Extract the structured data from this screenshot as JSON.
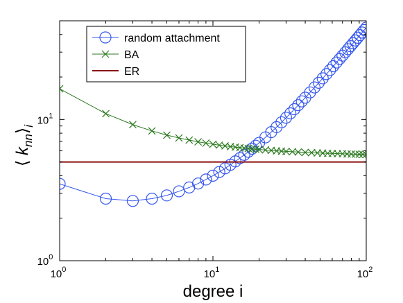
{
  "chart_data": {
    "type": "scatter",
    "title": "",
    "xlabel": "degree  i",
    "ylabel": "⟨ k_nn ⟩_i",
    "xscale": "log",
    "yscale": "log",
    "xlim": [
      1,
      100
    ],
    "ylim": [
      1,
      50
    ],
    "x_ticks": [
      {
        "value": 1,
        "base": "10",
        "exp": "0"
      },
      {
        "value": 10,
        "base": "10",
        "exp": "1"
      },
      {
        "value": 100,
        "base": "10",
        "exp": "2"
      }
    ],
    "y_ticks": [
      {
        "value": 1,
        "base": "10",
        "exp": "0"
      },
      {
        "value": 10,
        "base": "10",
        "exp": "1"
      }
    ],
    "grid": false,
    "legend_position": "top-left",
    "series": [
      {
        "name": "random attachment",
        "color": "#3355ee",
        "marker": "circle",
        "line": true,
        "points": [
          [
            1,
            3.5
          ],
          [
            2,
            2.75
          ],
          [
            3,
            2.65
          ],
          [
            4,
            2.75
          ],
          [
            5,
            2.9
          ],
          [
            6,
            3.1
          ],
          [
            7,
            3.3
          ],
          [
            8,
            3.52
          ],
          [
            9,
            3.76
          ],
          [
            10,
            4.0
          ],
          [
            11,
            4.25
          ],
          [
            12,
            4.51
          ],
          [
            13,
            4.78
          ],
          [
            14,
            5.05
          ],
          [
            15,
            5.33
          ],
          [
            16,
            5.62
          ],
          [
            17,
            5.91
          ],
          [
            18,
            6.21
          ],
          [
            19,
            6.52
          ],
          [
            20,
            6.83
          ],
          [
            22,
            7.47
          ],
          [
            24,
            8.14
          ],
          [
            26,
            8.83
          ],
          [
            28,
            9.55
          ],
          [
            30,
            10.29
          ],
          [
            32,
            11.05
          ],
          [
            34,
            11.83
          ],
          [
            36,
            12.63
          ],
          [
            38,
            13.44
          ],
          [
            40,
            14.27
          ],
          [
            43,
            15.55
          ],
          [
            46,
            16.86
          ],
          [
            49,
            18.2
          ],
          [
            52,
            19.57
          ],
          [
            55,
            20.97
          ],
          [
            58,
            22.39
          ],
          [
            61,
            23.84
          ],
          [
            64,
            25.32
          ],
          [
            67,
            26.82
          ],
          [
            70,
            28.34
          ],
          [
            73,
            29.89
          ],
          [
            76,
            31.46
          ],
          [
            79,
            33.05
          ],
          [
            82,
            34.66
          ],
          [
            85,
            36.29
          ],
          [
            88,
            37.94
          ],
          [
            91,
            39.61
          ],
          [
            94,
            41.3
          ],
          [
            97,
            43.0
          ],
          [
            100,
            44.7
          ]
        ]
      },
      {
        "name": "BA",
        "color": "#2b7a1f",
        "marker": "x",
        "line": true,
        "points": [
          [
            1,
            16.5
          ],
          [
            2,
            11.0
          ],
          [
            3,
            9.2
          ],
          [
            4,
            8.3
          ],
          [
            5,
            7.75
          ],
          [
            6,
            7.4
          ],
          [
            7,
            7.15
          ],
          [
            8,
            6.95
          ],
          [
            9,
            6.8
          ],
          [
            10,
            6.68
          ],
          [
            11,
            6.58
          ],
          [
            12,
            6.5
          ],
          [
            13,
            6.43
          ],
          [
            14,
            6.37
          ],
          [
            15,
            6.32
          ],
          [
            16,
            6.27
          ],
          [
            17,
            6.23
          ],
          [
            18,
            6.19
          ],
          [
            19,
            6.16
          ],
          [
            20,
            6.13
          ],
          [
            22,
            6.08
          ],
          [
            24,
            6.04
          ],
          [
            26,
            6.0
          ],
          [
            28,
            5.97
          ],
          [
            30,
            5.94
          ],
          [
            33,
            5.91
          ],
          [
            36,
            5.88
          ],
          [
            40,
            5.85
          ],
          [
            44,
            5.82
          ],
          [
            48,
            5.8
          ],
          [
            52,
            5.78
          ],
          [
            56,
            5.76
          ],
          [
            60,
            5.75
          ],
          [
            65,
            5.73
          ],
          [
            70,
            5.72
          ],
          [
            75,
            5.7
          ],
          [
            80,
            5.69
          ],
          [
            85,
            5.68
          ],
          [
            90,
            5.67
          ],
          [
            95,
            5.66
          ],
          [
            100,
            5.65
          ]
        ]
      },
      {
        "name": "ER",
        "color": "#8b0f0f",
        "marker": "none",
        "line": true,
        "points": [
          [
            1,
            5.0
          ],
          [
            100,
            5.0
          ]
        ]
      }
    ]
  }
}
